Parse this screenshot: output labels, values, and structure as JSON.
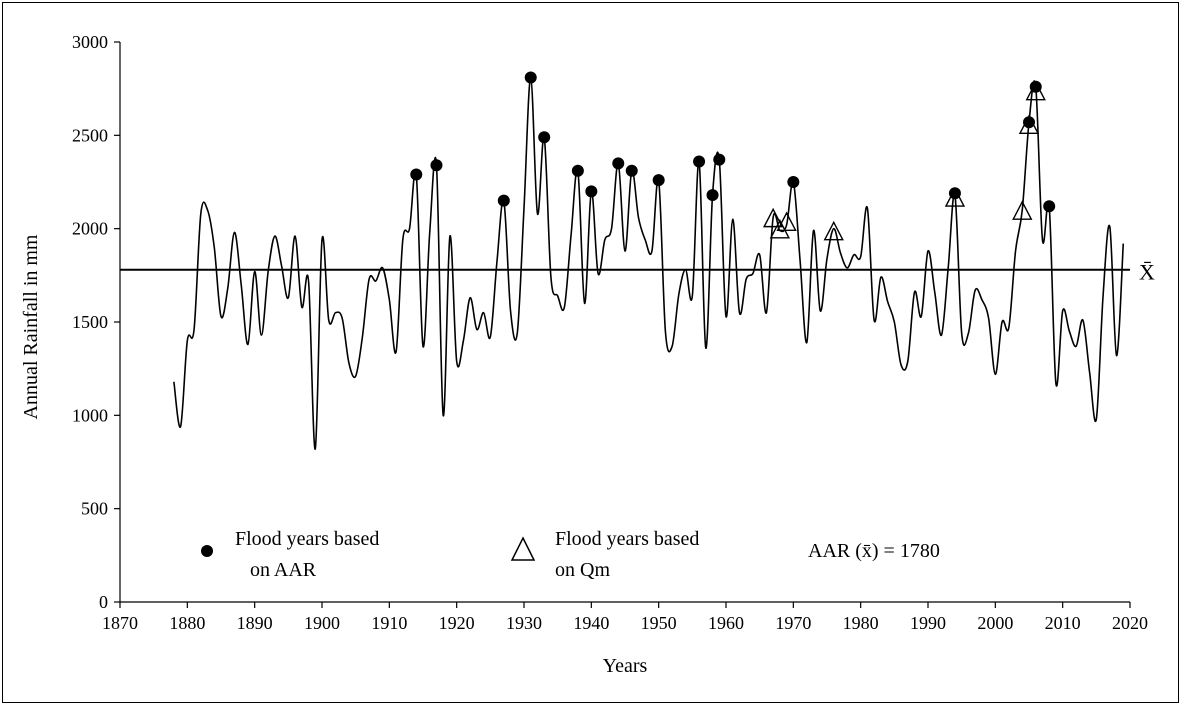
{
  "chart_data": {
    "type": "line",
    "title": "",
    "xlabel": "Years",
    "ylabel": "Annual Rainfall in mm",
    "xlim": [
      1870,
      2020
    ],
    "ylim": [
      0,
      3000
    ],
    "xticks": [
      "1870",
      "1880",
      "1890",
      "1900",
      "1910",
      "1920",
      "1930",
      "1940",
      "1950",
      "1960",
      "1970",
      "1980",
      "1990",
      "2000",
      "2010",
      "2020"
    ],
    "yticks": [
      "0",
      "500",
      "1000",
      "1500",
      "2000",
      "2500",
      "3000"
    ],
    "grid": false,
    "mean": {
      "value": 1780,
      "label": "X̄"
    },
    "annotation": "AAR (x̄) = 1780",
    "series": [
      {
        "kind": "line",
        "x": [
          1878,
          1879,
          1880,
          1881,
          1882,
          1883,
          1884,
          1885,
          1886,
          1887,
          1888,
          1889,
          1890,
          1891,
          1892,
          1893,
          1894,
          1895,
          1896,
          1897,
          1898,
          1899,
          1900,
          1901,
          1902,
          1903,
          1904,
          1905,
          1906,
          1907,
          1908,
          1909,
          1910,
          1911,
          1912,
          1913,
          1914,
          1915,
          1916,
          1917,
          1918,
          1919,
          1920,
          1921,
          1922,
          1923,
          1924,
          1925,
          1926,
          1927,
          1928,
          1929,
          1930,
          1931,
          1932,
          1933,
          1934,
          1935,
          1936,
          1937,
          1938,
          1939,
          1940,
          1941,
          1942,
          1943,
          1944,
          1945,
          1946,
          1947,
          1948,
          1949,
          1950,
          1951,
          1952,
          1953,
          1954,
          1955,
          1956,
          1957,
          1958,
          1959,
          1960,
          1961,
          1962,
          1963,
          1964,
          1965,
          1966,
          1967,
          1968,
          1969,
          1970,
          1971,
          1972,
          1973,
          1974,
          1975,
          1976,
          1977,
          1978,
          1979,
          1980,
          1981,
          1982,
          1983,
          1984,
          1985,
          1986,
          1987,
          1988,
          1989,
          1990,
          1991,
          1992,
          1993,
          1994,
          1995,
          1996,
          1997,
          1998,
          1999,
          2000,
          2001,
          2002,
          2003,
          2004,
          2005,
          2006,
          2007,
          2008,
          2009,
          2010,
          2011,
          2012,
          2013,
          2014,
          2015,
          2016,
          2017,
          2018,
          2019
        ],
        "y": [
          1180,
          940,
          1400,
          1460,
          2080,
          2100,
          1900,
          1530,
          1680,
          1980,
          1700,
          1380,
          1770,
          1430,
          1770,
          1960,
          1800,
          1630,
          1960,
          1580,
          1720,
          820,
          1940,
          1510,
          1550,
          1520,
          1280,
          1210,
          1420,
          1730,
          1720,
          1790,
          1620,
          1340,
          1940,
          2000,
          2290,
          1370,
          1980,
          2340,
          1000,
          1960,
          1290,
          1400,
          1630,
          1460,
          1550,
          1420,
          1830,
          2150,
          1560,
          1440,
          2110,
          2810,
          2080,
          2490,
          1740,
          1640,
          1580,
          1970,
          2310,
          1600,
          2200,
          1760,
          1940,
          2000,
          2350,
          1880,
          2310,
          2060,
          1940,
          1880,
          2260,
          1450,
          1370,
          1650,
          1780,
          1640,
          2360,
          1360,
          2180,
          2370,
          1530,
          2050,
          1550,
          1730,
          1760,
          1860,
          1550,
          2060,
          1990,
          2020,
          2250,
          1830,
          1390,
          1990,
          1560,
          1840,
          2000,
          1870,
          1790,
          1860,
          1850,
          2110,
          1510,
          1740,
          1610,
          1500,
          1270,
          1290,
          1660,
          1530,
          1880,
          1660,
          1430,
          1790,
          2180,
          1440,
          1440,
          1670,
          1620,
          1520,
          1220,
          1500,
          1470,
          1880,
          2100,
          2570,
          2760,
          1940,
          2120,
          1170,
          1560,
          1450,
          1370,
          1510,
          1230,
          980,
          1640,
          2010,
          1320,
          1920
        ]
      },
      {
        "name": "Flood years based on AAR",
        "kind": "marker",
        "marker": "circle",
        "x": [
          1914,
          1917,
          1927,
          1931,
          1933,
          1938,
          1940,
          1944,
          1946,
          1950,
          1956,
          1958,
          1959,
          1970,
          1994,
          2005,
          2006,
          2008
        ],
        "y": [
          2290,
          2340,
          2150,
          2810,
          2490,
          2310,
          2200,
          2350,
          2310,
          2260,
          2360,
          2180,
          2370,
          2250,
          2190,
          2570,
          2760,
          2120
        ]
      },
      {
        "name": "Flood years based on Qm",
        "kind": "marker",
        "marker": "triangle",
        "x": [
          1967,
          1968,
          1969,
          1976,
          1994,
          2004,
          2005,
          2006
        ],
        "y": [
          2050,
          1990,
          2030,
          1980,
          2160,
          2090,
          2550,
          2730
        ]
      }
    ],
    "legend": [
      {
        "marker": "circle",
        "line1": "Flood years based",
        "line2": "on AAR"
      },
      {
        "marker": "triangle",
        "line1": "Flood years based",
        "line2": "on Qm"
      }
    ]
  }
}
